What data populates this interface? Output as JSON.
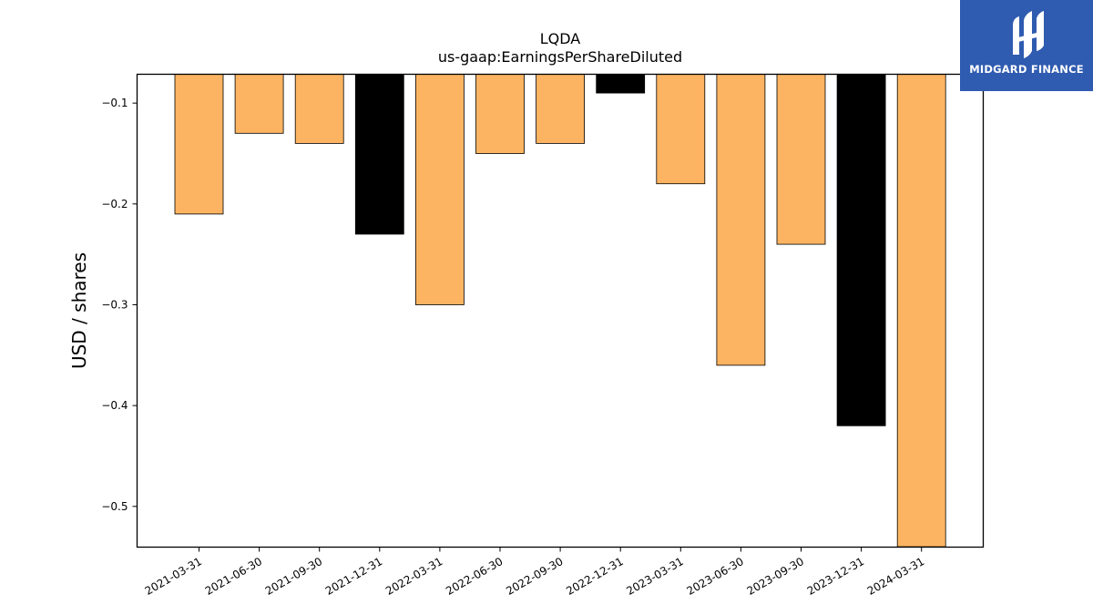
{
  "brand": {
    "name": "MIDGARD FINANCE",
    "color": "#2f5bb0"
  },
  "colors": {
    "bar_default": "#fdb462",
    "bar_highlight": "#000000"
  },
  "chart_data": {
    "type": "bar",
    "title": "LQDA",
    "subtitle": "us-gaap:EarningsPerShareDiluted",
    "xlabel": "",
    "ylabel": "USD / shares",
    "categories": [
      "2021-03-31",
      "2021-06-30",
      "2021-09-30",
      "2021-12-31",
      "2022-03-31",
      "2022-06-30",
      "2022-09-30",
      "2022-12-31",
      "2023-03-31",
      "2023-06-30",
      "2023-09-30",
      "2023-12-31",
      "2024-03-31"
    ],
    "values": [
      -0.21,
      -0.13,
      -0.14,
      -0.23,
      -0.3,
      -0.15,
      -0.14,
      -0.09,
      -0.18,
      -0.36,
      -0.24,
      -0.42,
      -0.54
    ],
    "highlighted": [
      "2021-12-31",
      "2022-12-31",
      "2023-12-31"
    ],
    "ylim": [
      -0.5404,
      -0.0714
    ],
    "yticks": [
      -0.1,
      -0.2,
      -0.3,
      -0.4,
      -0.5
    ],
    "ytick_labels": [
      "−0.1",
      "−0.2",
      "−0.3",
      "−0.4",
      "−0.5"
    ],
    "grid": false,
    "legend": "none"
  }
}
